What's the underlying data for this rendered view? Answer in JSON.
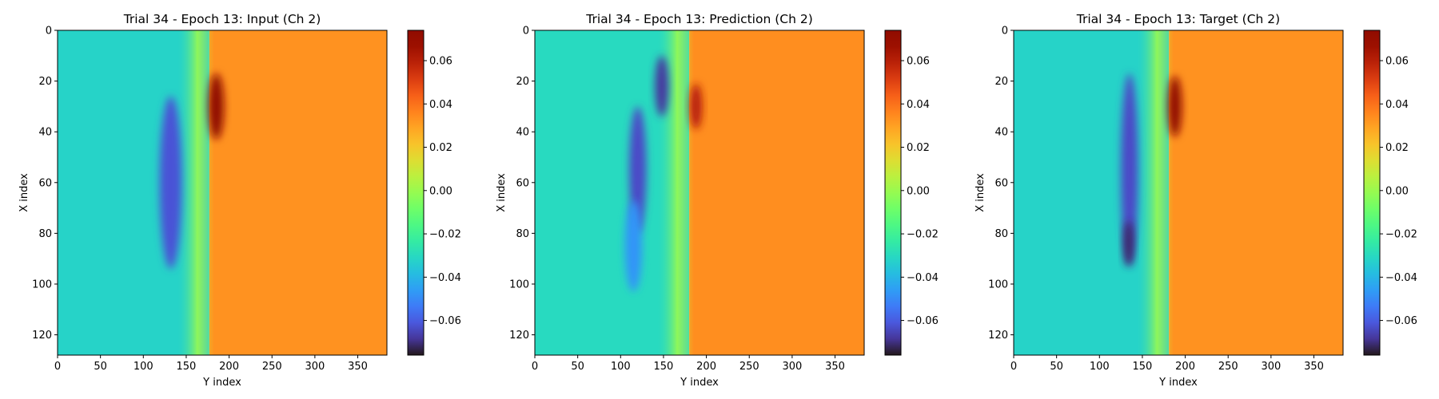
{
  "chart_data": [
    {
      "type": "heatmap",
      "title": "Trial 34 - Epoch 13: Input (Ch 2)",
      "xlabel": "Y index",
      "ylabel": "X index",
      "xlim": [
        0,
        384
      ],
      "ylim": [
        128,
        0
      ],
      "xticks": [
        0,
        50,
        100,
        150,
        200,
        250,
        300,
        350
      ],
      "yticks": [
        0,
        20,
        40,
        60,
        80,
        100,
        120
      ],
      "colormap": "turbo",
      "color_range": [
        -0.076,
        0.074
      ],
      "colorbar_ticks": [
        "0.06",
        "0.04",
        "0.02",
        "0.00",
        "−0.02",
        "−0.04",
        "−0.06"
      ],
      "colorbar_tick_values": [
        0.06,
        0.04,
        0.02,
        0.0,
        -0.02,
        -0.04,
        -0.06
      ],
      "front_y_index": 177,
      "left_level": -0.032,
      "right_level": 0.033,
      "features": [
        {
          "kind": "low",
          "y": 132,
          "x": 60,
          "ry": 13,
          "rx": 34,
          "value": -0.062
        },
        {
          "kind": "high",
          "y": 185,
          "x": 30,
          "ry": 9,
          "rx": 13,
          "value": 0.072
        }
      ]
    },
    {
      "type": "heatmap",
      "title": "Trial 34 - Epoch 13: Prediction (Ch 2)",
      "xlabel": "Y index",
      "ylabel": "X index",
      "xlim": [
        0,
        384
      ],
      "ylim": [
        128,
        0
      ],
      "xticks": [
        0,
        50,
        100,
        150,
        200,
        250,
        300,
        350
      ],
      "yticks": [
        0,
        20,
        40,
        60,
        80,
        100,
        120
      ],
      "colormap": "turbo",
      "color_range": [
        -0.076,
        0.074
      ],
      "colorbar_ticks": [
        "0.06",
        "0.04",
        "0.02",
        "0.00",
        "−0.02",
        "−0.04",
        "−0.06"
      ],
      "colorbar_tick_values": [
        0.06,
        0.04,
        0.02,
        0.0,
        -0.02,
        -0.04,
        -0.06
      ],
      "front_y_index": 180,
      "left_level": -0.03,
      "right_level": 0.034,
      "features": [
        {
          "kind": "low",
          "y": 120,
          "x": 55,
          "ry": 10,
          "rx": 25,
          "value": -0.064
        },
        {
          "kind": "low",
          "y": 148,
          "x": 22,
          "ry": 8,
          "rx": 12,
          "value": -0.068
        },
        {
          "kind": "low",
          "y": 115,
          "x": 85,
          "ry": 10,
          "rx": 18,
          "value": -0.048
        },
        {
          "kind": "high",
          "y": 188,
          "x": 30,
          "ry": 7,
          "rx": 9,
          "value": 0.06
        }
      ]
    },
    {
      "type": "heatmap",
      "title": "Trial 34 - Epoch 13: Target (Ch 2)",
      "xlabel": "Y index",
      "ylabel": "X index",
      "xlim": [
        0,
        384
      ],
      "ylim": [
        128,
        0
      ],
      "xticks": [
        0,
        50,
        100,
        150,
        200,
        250,
        300,
        350
      ],
      "yticks": [
        0,
        20,
        40,
        60,
        80,
        100,
        120
      ],
      "colormap": "turbo",
      "color_range": [
        -0.076,
        0.074
      ],
      "colorbar_ticks": [
        "0.06",
        "0.04",
        "0.02",
        "0.00",
        "−0.02",
        "−0.04",
        "−0.06"
      ],
      "colorbar_tick_values": [
        0.06,
        0.04,
        0.02,
        0.0,
        -0.02,
        -0.04,
        -0.06
      ],
      "front_y_index": 181,
      "left_level": -0.032,
      "right_level": 0.033,
      "features": [
        {
          "kind": "low",
          "y": 135,
          "x": 55,
          "ry": 10,
          "rx": 38,
          "value": -0.064
        },
        {
          "kind": "low",
          "y": 134,
          "x": 84,
          "ry": 6,
          "rx": 9,
          "value": -0.072
        },
        {
          "kind": "high",
          "y": 188,
          "x": 30,
          "ry": 8,
          "rx": 12,
          "value": 0.072
        }
      ]
    }
  ]
}
